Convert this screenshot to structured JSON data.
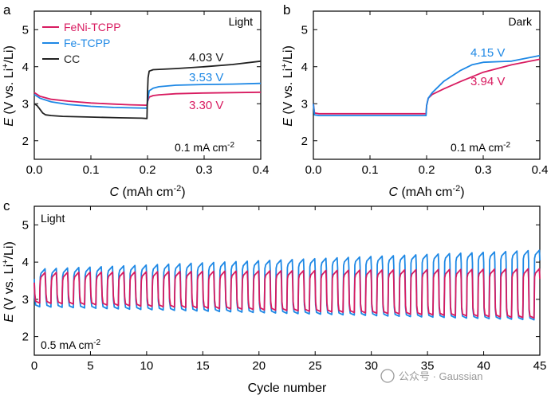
{
  "colors": {
    "feni": "#d81b60",
    "fe": "#1e88e5",
    "cc": "#212121"
  },
  "panels": [
    {
      "letter": "a",
      "corner_label": "Light",
      "current": "0.1 mA cm",
      "current_exp": "-2",
      "ylabel_parts": [
        "E",
        " (V vs. Li",
        "+",
        "/Li)"
      ],
      "xlabel_parts": [
        "C",
        " (mAh cm",
        "-2",
        ")"
      ],
      "xticks": [
        "0.0",
        "0.1",
        "0.2",
        "0.3",
        "0.4"
      ],
      "yticks": [
        "2",
        "3",
        "4",
        "5"
      ],
      "legend": [
        "FeNi-TCPP",
        "Fe-TCPP",
        "CC"
      ],
      "annotations": [
        "4.03 V",
        "3.53 V",
        "3.30 V"
      ]
    },
    {
      "letter": "b",
      "corner_label": "Dark",
      "current": "0.1 mA cm",
      "current_exp": "-2",
      "ylabel_parts": [
        "E",
        " (V vs. Li",
        "+",
        "/Li)"
      ],
      "xlabel_parts": [
        "C",
        " (mAh cm",
        "-2",
        ")"
      ],
      "xticks": [
        "0.0",
        "0.1",
        "0.2",
        "0.3",
        "0.4"
      ],
      "yticks": [
        "2",
        "3",
        "4",
        "5"
      ],
      "annotations": [
        "4.15 V",
        "3.94 V"
      ]
    },
    {
      "letter": "c",
      "corner_label": "Light",
      "current": "0.5 mA cm",
      "current_exp": "-2",
      "ylabel_parts": [
        "E",
        " (V vs. Li",
        "+",
        "/Li)"
      ],
      "xlabel": "Cycle number",
      "xticks": [
        "0",
        "5",
        "10",
        "15",
        "20",
        "25",
        "30",
        "35",
        "40",
        "45"
      ],
      "yticks": [
        "2",
        "3",
        "4",
        "5"
      ]
    }
  ],
  "watermark": "公众号 · Gaussian",
  "chart_data": [
    {
      "type": "line",
      "panel": "a",
      "xlabel": "C (mAh cm-2)",
      "ylabel": "E (V vs. Li+/Li)",
      "xlim": [
        0,
        0.4
      ],
      "ylim": [
        1.5,
        5.5
      ],
      "series": [
        {
          "name": "FeNi-TCPP",
          "x": [
            0,
            0.01,
            0.03,
            0.06,
            0.1,
            0.14,
            0.17,
            0.199,
            0.2,
            0.203,
            0.21,
            0.22,
            0.25,
            0.3,
            0.35,
            0.4
          ],
          "y": [
            3.3,
            3.2,
            3.12,
            3.07,
            3.02,
            2.99,
            2.97,
            2.96,
            3.05,
            3.18,
            3.22,
            3.24,
            3.27,
            3.29,
            3.3,
            3.31
          ]
        },
        {
          "name": "Fe-TCPP",
          "x": [
            0,
            0.01,
            0.03,
            0.06,
            0.1,
            0.14,
            0.17,
            0.199,
            0.2,
            0.203,
            0.21,
            0.22,
            0.25,
            0.3,
            0.35,
            0.4
          ],
          "y": [
            3.25,
            3.15,
            3.05,
            2.98,
            2.93,
            2.9,
            2.89,
            2.88,
            3.05,
            3.35,
            3.42,
            3.46,
            3.5,
            3.52,
            3.53,
            3.55
          ]
        },
        {
          "name": "CC",
          "x": [
            0,
            0.005,
            0.01,
            0.015,
            0.02,
            0.03,
            0.05,
            0.1,
            0.15,
            0.19,
            0.199,
            0.2,
            0.201,
            0.203,
            0.21,
            0.25,
            0.3,
            0.35,
            0.4
          ],
          "y": [
            3.0,
            2.95,
            2.85,
            2.75,
            2.7,
            2.68,
            2.66,
            2.64,
            2.62,
            2.61,
            2.6,
            3.3,
            3.7,
            3.88,
            3.92,
            3.95,
            4.0,
            4.06,
            4.15
          ]
        }
      ],
      "annotations": [
        "4.03 V",
        "3.53 V",
        "3.30 V"
      ]
    },
    {
      "type": "line",
      "panel": "b",
      "xlabel": "C (mAh cm-2)",
      "ylabel": "E (V vs. Li+/Li)",
      "xlim": [
        0,
        0.4
      ],
      "ylim": [
        1.5,
        5.5
      ],
      "series": [
        {
          "name": "FeNi-TCPP",
          "x": [
            0,
            0.002,
            0.01,
            0.05,
            0.1,
            0.15,
            0.199,
            0.2,
            0.203,
            0.21,
            0.23,
            0.26,
            0.3,
            0.35,
            0.4
          ],
          "y": [
            3.0,
            2.75,
            2.73,
            2.73,
            2.73,
            2.73,
            2.73,
            2.95,
            3.15,
            3.25,
            3.4,
            3.6,
            3.85,
            4.05,
            4.2
          ]
        },
        {
          "name": "Fe-TCPP",
          "x": [
            0,
            0.002,
            0.01,
            0.05,
            0.1,
            0.15,
            0.199,
            0.2,
            0.203,
            0.21,
            0.23,
            0.26,
            0.28,
            0.3,
            0.35,
            0.4
          ],
          "y": [
            3.0,
            2.7,
            2.68,
            2.68,
            2.68,
            2.68,
            2.68,
            2.95,
            3.15,
            3.3,
            3.6,
            3.9,
            4.05,
            4.12,
            4.15,
            4.3
          ]
        }
      ],
      "annotations": [
        "4.15 V",
        "3.94 V"
      ]
    },
    {
      "type": "line",
      "panel": "c",
      "xlabel": "Cycle number",
      "ylabel": "E (V vs. Li+/Li)",
      "xlim": [
        0,
        45
      ],
      "ylim": [
        1.5,
        5.5
      ],
      "cycles": 45,
      "series": [
        {
          "name": "FeNi-TCPP",
          "cycle_start": {
            "discharge": 2.9,
            "charge": 3.6
          },
          "cycle_end": {
            "discharge": 2.5,
            "charge": 3.7
          }
        },
        {
          "name": "Fe-TCPP",
          "cycle_start": {
            "discharge": 2.8,
            "charge": 3.7
          },
          "cycle_end": {
            "discharge": 2.45,
            "charge": 4.2
          }
        }
      ]
    }
  ]
}
